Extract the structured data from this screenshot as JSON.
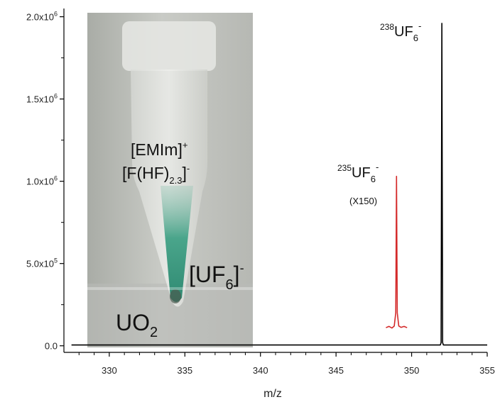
{
  "chart_data": {
    "type": "line",
    "xlabel": "m/z",
    "ylabel": "",
    "xlim": [
      327,
      355
    ],
    "ylim": [
      -40000,
      2050000
    ],
    "x_ticks": [
      330,
      335,
      340,
      345,
      350,
      355
    ],
    "x_tick_labels": [
      "330",
      "335",
      "340",
      "345",
      "350",
      "355"
    ],
    "y_ticks": [
      0,
      500000,
      1000000,
      1500000,
      2000000
    ],
    "y_tick_labels": [
      {
        "base": "0.0",
        "exp": ""
      },
      {
        "base": "5.0x10",
        "exp": "5"
      },
      {
        "base": "1.0x10",
        "exp": "6"
      },
      {
        "base": "1.5x10",
        "exp": "6"
      },
      {
        "base": "2.0x10",
        "exp": "6"
      }
    ],
    "series": [
      {
        "color": "#000000",
        "points": [
          [
            327.5,
            5000
          ],
          [
            351.9,
            5000
          ],
          [
            351.95,
            20000
          ],
          [
            352.0,
            1960000
          ],
          [
            352.05,
            20000
          ],
          [
            352.1,
            5000
          ],
          [
            355,
            5000
          ]
        ]
      },
      {
        "color": "#d42a2a",
        "points": [
          [
            348.3,
            110000
          ],
          [
            348.5,
            118000
          ],
          [
            348.7,
            108000
          ],
          [
            348.85,
            120000
          ],
          [
            348.95,
            200000
          ],
          [
            349.0,
            1030000
          ],
          [
            349.05,
            200000
          ],
          [
            349.15,
            120000
          ],
          [
            349.3,
            112000
          ],
          [
            349.5,
            118000
          ],
          [
            349.7,
            110000
          ]
        ]
      }
    ],
    "peak_labels": [
      {
        "mass": "238",
        "formula": "UF",
        "sub": "6",
        "charge": "-",
        "color": "#000000"
      },
      {
        "mass": "235",
        "formula": "UF",
        "sub": "6",
        "charge": "-",
        "note": "(X150)",
        "color": "#000000"
      }
    ],
    "photo_labels": {
      "cation": "[EMIm]",
      "cation_charge": "+",
      "anion_open": "[F(HF)",
      "anion_sub": "2.3",
      "anion_close": "]",
      "anion_charge": "-",
      "product_open": "[UF",
      "product_sub": "6",
      "product_close": "]",
      "product_charge": "-",
      "reactant": "UO",
      "reactant_sub": "2"
    },
    "grid": false,
    "legend": "none"
  }
}
